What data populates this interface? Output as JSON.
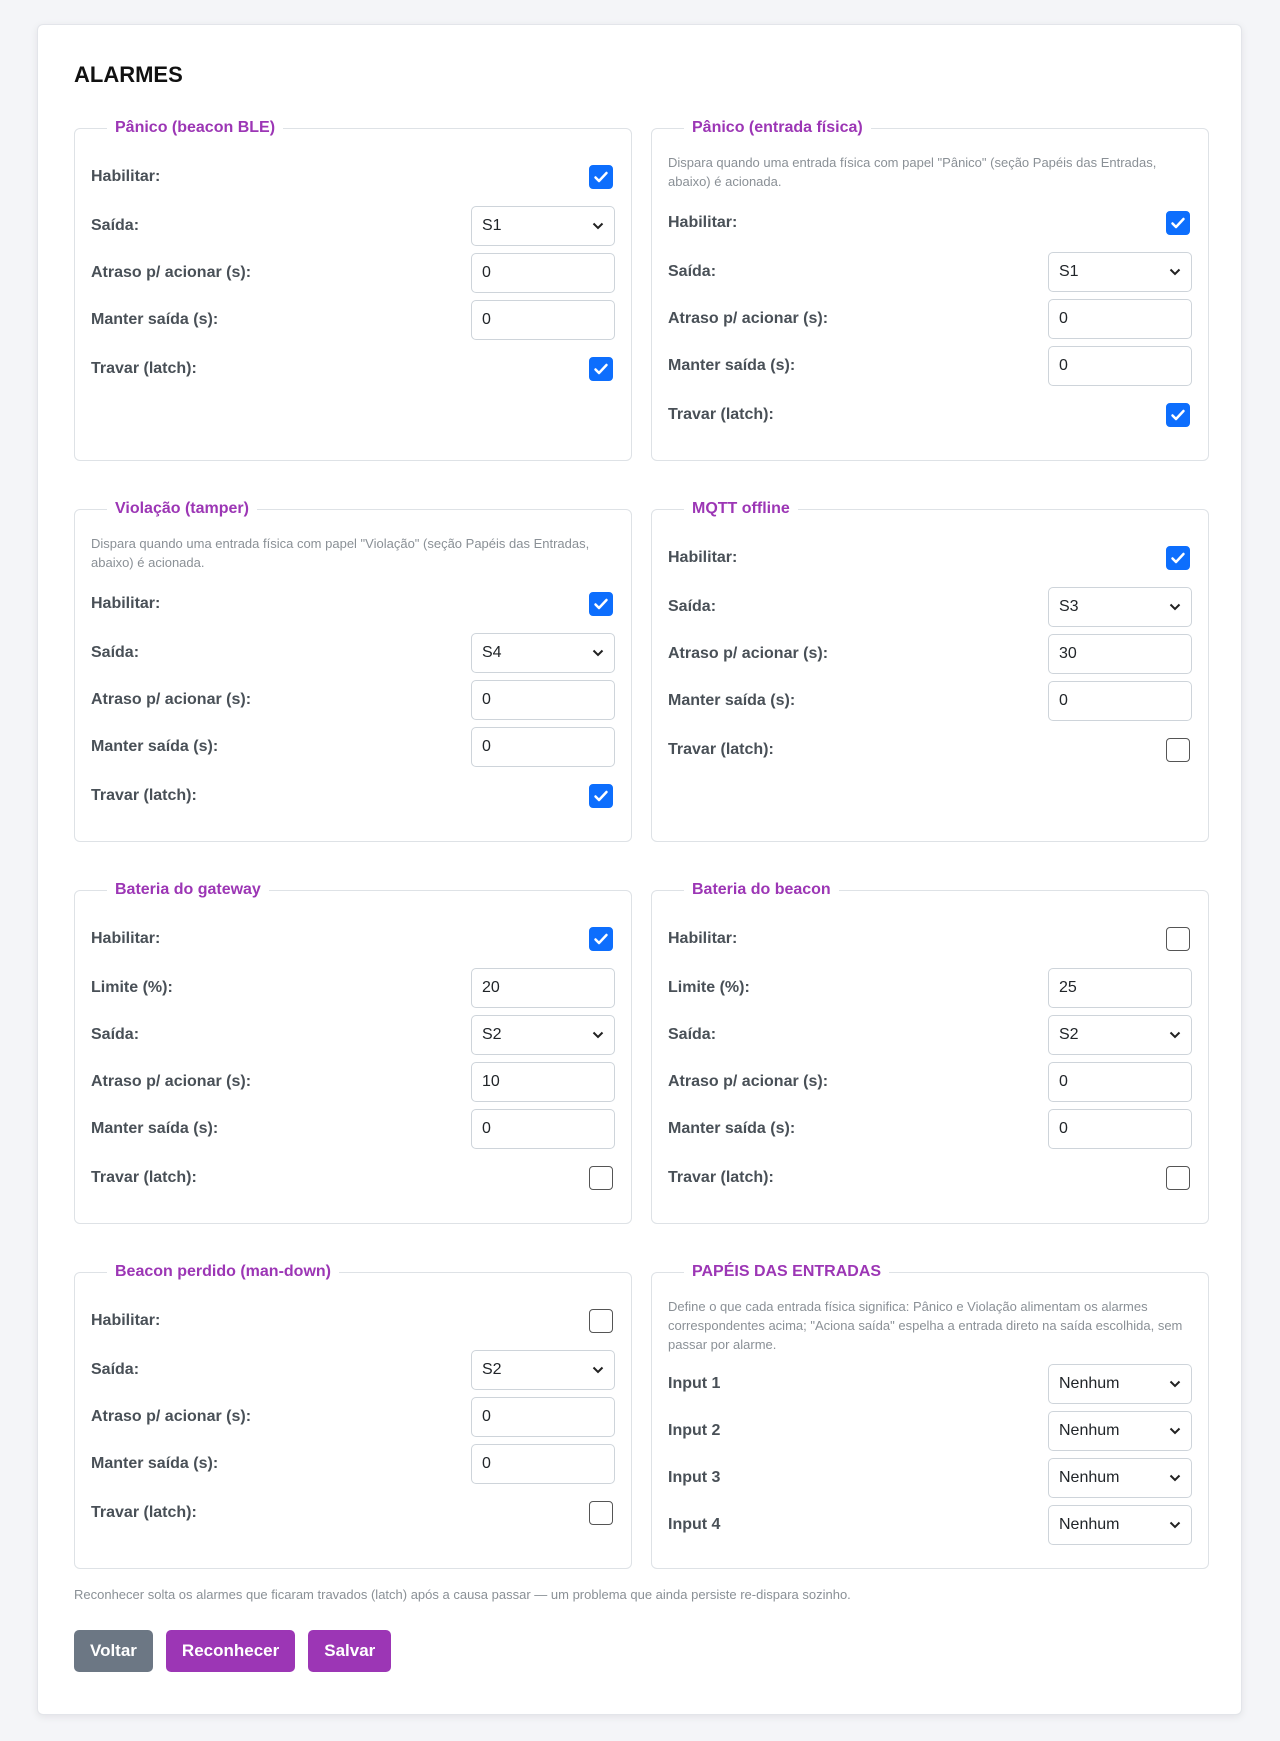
{
  "title": "ALARMES",
  "sections": [
    {
      "legend": "Pânico (beacon BLE)",
      "fields": [
        {
          "label": "Habilitar:",
          "checked": true
        },
        {
          "label": "Saída:",
          "select": "S1"
        },
        {
          "label": "Atraso p/ acionar (s):",
          "value": "0"
        },
        {
          "label": "Manter saída (s):",
          "value": "0"
        },
        {
          "label": "Travar (latch):",
          "checked": true
        }
      ]
    },
    {
      "legend": "Pânico (entrada física)",
      "description": "Dispara quando uma entrada física com papel \"Pânico\" (seção Papéis das Entradas, abaixo) é acionada.",
      "fields": [
        {
          "label": "Habilitar:",
          "checked": true
        },
        {
          "label": "Saída:",
          "select": "S1"
        },
        {
          "label": "Atraso p/ acionar (s):",
          "value": "0"
        },
        {
          "label": "Manter saída (s):",
          "value": "0"
        },
        {
          "label": "Travar (latch):",
          "checked": true
        }
      ]
    },
    {
      "legend": "Violação (tamper)",
      "description": "Dispara quando uma entrada física com papel \"Violação\" (seção Papéis das Entradas, abaixo) é acionada.",
      "fields": [
        {
          "label": "Habilitar:",
          "checked": true
        },
        {
          "label": "Saída:",
          "select": "S4"
        },
        {
          "label": "Atraso p/ acionar (s):",
          "value": "0"
        },
        {
          "label": "Manter saída (s):",
          "value": "0"
        },
        {
          "label": "Travar (latch):",
          "checked": true
        }
      ]
    },
    {
      "legend": "MQTT offline",
      "fields": [
        {
          "label": "Habilitar:",
          "checked": true
        },
        {
          "label": "Saída:",
          "select": "S3"
        },
        {
          "label": "Atraso p/ acionar (s):",
          "value": "30"
        },
        {
          "label": "Manter saída (s):",
          "value": "0"
        },
        {
          "label": "Travar (latch):",
          "checked": false
        }
      ]
    },
    {
      "legend": "Bateria do gateway",
      "fields": [
        {
          "label": "Habilitar:",
          "checked": true
        },
        {
          "label": "Limite (%):",
          "value": "20"
        },
        {
          "label": "Saída:",
          "select": "S2"
        },
        {
          "label": "Atraso p/ acionar (s):",
          "value": "10"
        },
        {
          "label": "Manter saída (s):",
          "value": "0"
        },
        {
          "label": "Travar (latch):",
          "checked": false
        }
      ]
    },
    {
      "legend": "Bateria do beacon",
      "fields": [
        {
          "label": "Habilitar:",
          "checked": false
        },
        {
          "label": "Limite (%):",
          "value": "25"
        },
        {
          "label": "Saída:",
          "select": "S2"
        },
        {
          "label": "Atraso p/ acionar (s):",
          "value": "0"
        },
        {
          "label": "Manter saída (s):",
          "value": "0"
        },
        {
          "label": "Travar (latch):",
          "checked": false
        }
      ]
    },
    {
      "legend": "Beacon perdido (man-down)",
      "fields": [
        {
          "label": "Habilitar:",
          "checked": false
        },
        {
          "label": "Saída:",
          "select": "S2"
        },
        {
          "label": "Atraso p/ acionar (s):",
          "value": "0"
        },
        {
          "label": "Manter saída (s):",
          "value": "0"
        },
        {
          "label": "Travar (latch):",
          "checked": false
        }
      ]
    },
    {
      "legend": "PAPÉIS DAS ENTRADAS",
      "description": "Define o que cada entrada física significa: Pânico e Violação alimentam os alarmes correspondentes acima; \"Aciona saída\" espelha a entrada direto na saída escolhida, sem passar por alarme.",
      "fields": [
        {
          "label": "Input 1",
          "select": "Nenhum"
        },
        {
          "label": "Input 2",
          "select": "Nenhum"
        },
        {
          "label": "Input 3",
          "select": "Nenhum"
        },
        {
          "label": "Input 4",
          "select": "Nenhum"
        }
      ]
    }
  ],
  "footnote": "Reconhecer solta os alarmes que ficaram travados (latch) após a causa passar — um problema que ainda persiste re-dispara sozinho.",
  "buttons": [
    "Voltar",
    "Reconhecer",
    "Salvar"
  ]
}
